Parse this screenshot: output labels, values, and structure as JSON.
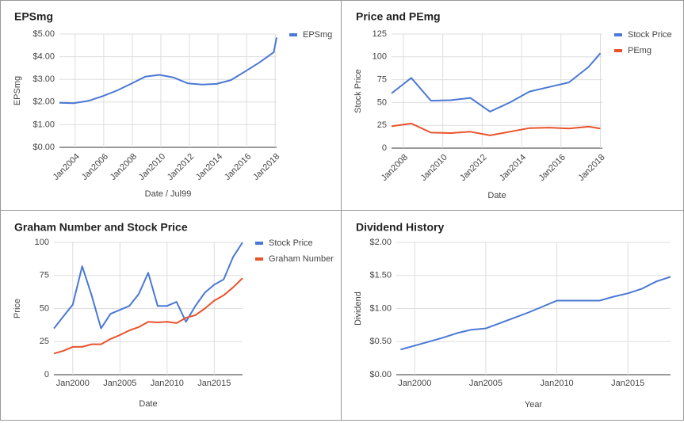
{
  "chart_data": [
    {
      "type": "line",
      "title": "EPSmg",
      "x_label": "Date / Jul99",
      "y_label": "EPSmg",
      "x": [
        2002.9,
        2003.9,
        2004.9,
        2005.9,
        2006.9,
        2007.9,
        2008.9,
        2009.9,
        2010.9,
        2011.9,
        2012.9,
        2013.9,
        2014.9,
        2015.9,
        2016.9,
        2017.9,
        2018.1
      ],
      "series": [
        {
          "name": "EPSmg",
          "color": "#4a78d4",
          "values": [
            1.97,
            1.95,
            2.05,
            2.25,
            2.5,
            2.8,
            3.12,
            3.2,
            3.08,
            2.82,
            2.77,
            2.8,
            2.97,
            3.35,
            3.75,
            4.2,
            4.85
          ]
        }
      ],
      "xlim": [
        2002.9,
        2018.1
      ],
      "ylim": [
        0,
        5
      ],
      "xticks": [
        {
          "value": 2004,
          "label": "Jan2004"
        },
        {
          "value": 2006,
          "label": "Jan2006"
        },
        {
          "value": 2008,
          "label": "Jan2008"
        },
        {
          "value": 2010,
          "label": "Jan2010"
        },
        {
          "value": 2012,
          "label": "Jan2012"
        },
        {
          "value": 2014,
          "label": "Jan2014"
        },
        {
          "value": 2016,
          "label": "Jan2016"
        },
        {
          "value": 2018,
          "label": "Jan2018"
        }
      ],
      "yticks": [
        {
          "value": 0,
          "label": "$0.00"
        },
        {
          "value": 1,
          "label": "$1.00"
        },
        {
          "value": 2,
          "label": "$2.00"
        },
        {
          "value": 3,
          "label": "$3.00"
        },
        {
          "value": 4,
          "label": "$4.00"
        },
        {
          "value": 5,
          "label": "$5.00"
        }
      ],
      "grid": true,
      "legend": "right"
    },
    {
      "type": "line",
      "title": "Price and PEmg",
      "x_label": "Date",
      "y_label": "Stock Price",
      "x": [
        2007.4,
        2008.4,
        2009.4,
        2010.4,
        2011.4,
        2012.4,
        2013.4,
        2014.4,
        2015.4,
        2016.4,
        2017.4,
        2018.0
      ],
      "series": [
        {
          "name": "Stock Price",
          "color": "#4a78d4",
          "values": [
            60,
            77,
            52,
            52.5,
            55,
            40,
            50,
            62,
            67,
            72,
            89,
            104
          ]
        },
        {
          "name": "PEmg",
          "color": "#e8532b",
          "values": [
            24,
            27,
            17,
            16.5,
            18,
            14,
            18,
            22,
            22.5,
            21.5,
            23.5,
            21.5
          ]
        }
      ],
      "xlim": [
        2007.4,
        2018.1
      ],
      "ylim": [
        0,
        125
      ],
      "xticks": [
        {
          "value": 2008,
          "label": "Jan2008"
        },
        {
          "value": 2010,
          "label": "Jan2010"
        },
        {
          "value": 2012,
          "label": "Jan2012"
        },
        {
          "value": 2014,
          "label": "Jan2014"
        },
        {
          "value": 2016,
          "label": "Jan2016"
        },
        {
          "value": 2018,
          "label": "Jan2018"
        }
      ],
      "yticks": [
        0,
        25,
        50,
        75,
        100,
        125
      ],
      "grid": true,
      "legend": "right"
    },
    {
      "type": "line",
      "title": "Graham Number and Stock Price",
      "x_label": "Date",
      "y_label": "Price",
      "x": [
        1998,
        1999,
        2000,
        2001,
        2002,
        2003,
        2004,
        2005,
        2006,
        2007,
        2008,
        2009,
        2010,
        2011,
        2012,
        2013,
        2014,
        2015,
        2016,
        2017,
        2018
      ],
      "series": [
        {
          "name": "Stock Price",
          "color": "#4a78d4",
          "values": [
            35,
            44,
            53,
            82,
            60,
            35,
            46,
            49,
            52,
            61,
            77,
            52,
            52,
            55,
            40,
            52,
            62,
            68,
            72,
            89,
            100
          ]
        },
        {
          "name": "Graham Number",
          "color": "#e8532b",
          "values": [
            16,
            18,
            21,
            21,
            23,
            23,
            27,
            30,
            33.5,
            36,
            40,
            39.5,
            40,
            39,
            43,
            45,
            50,
            56,
            60,
            66,
            73
          ]
        }
      ],
      "xlim": [
        1998,
        2018
      ],
      "ylim": [
        0,
        100
      ],
      "xticks": [
        {
          "value": 2000,
          "label": "Jan2000"
        },
        {
          "value": 2005,
          "label": "Jan2005"
        },
        {
          "value": 2010,
          "label": "Jan2010"
        },
        {
          "value": 2015,
          "label": "Jan2015"
        }
      ],
      "yticks": [
        0,
        25,
        50,
        75,
        100
      ],
      "grid": true,
      "legend": "right"
    },
    {
      "type": "line",
      "title": "Dividend History",
      "x_label": "Year",
      "y_label": "Dividend",
      "x": [
        1999,
        2000,
        2001,
        2002,
        2003,
        2004,
        2005,
        2006,
        2007,
        2008,
        2009,
        2010,
        2011,
        2012,
        2013,
        2014,
        2015,
        2016,
        2017,
        2018
      ],
      "series": [
        {
          "name": "Dividend",
          "color": "#4a78d4",
          "values": [
            0.38,
            0.44,
            0.5,
            0.56,
            0.63,
            0.68,
            0.7,
            0.78,
            0.86,
            0.94,
            1.03,
            1.12,
            1.12,
            1.12,
            1.12,
            1.18,
            1.23,
            1.3,
            1.41,
            1.48
          ]
        }
      ],
      "xlim": [
        1998.7,
        2018
      ],
      "ylim": [
        0,
        2
      ],
      "xticks": [
        {
          "value": 2000,
          "label": "Jan2000"
        },
        {
          "value": 2005,
          "label": "Jan2005"
        },
        {
          "value": 2010,
          "label": "Jan2010"
        },
        {
          "value": 2015,
          "label": "Jan2015"
        }
      ],
      "yticks": [
        {
          "value": 0,
          "label": "$0.00"
        },
        {
          "value": 0.5,
          "label": "$0.50"
        },
        {
          "value": 1,
          "label": "$1.00"
        },
        {
          "value": 1.5,
          "label": "$1.50"
        },
        {
          "value": 2,
          "label": "$2.00"
        }
      ],
      "grid": true,
      "legend": "none"
    }
  ]
}
